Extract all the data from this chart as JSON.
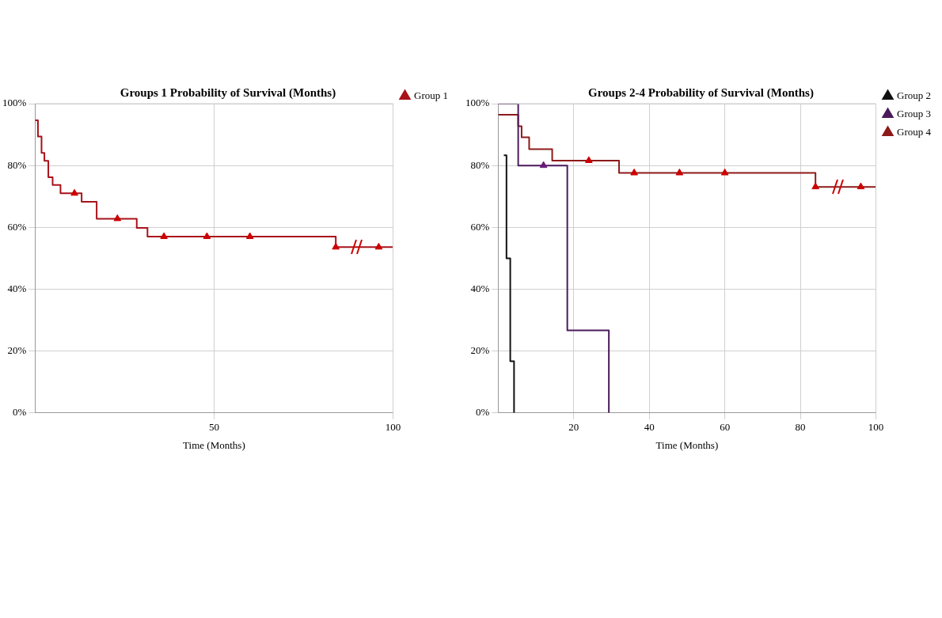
{
  "chart_data": [
    {
      "type": "step",
      "title": "Groups 1 Probability of Survival (Months)",
      "xlabel": "Time (Months)",
      "xlim": [
        0,
        100
      ],
      "xticks": [
        50,
        100
      ],
      "ylim": [
        0,
        100
      ],
      "yticks": [
        {
          "value": 0,
          "label": "0%"
        },
        {
          "value": 20,
          "label": "20%"
        },
        {
          "value": 40,
          "label": "40%"
        },
        {
          "value": 60,
          "label": "60%"
        },
        {
          "value": 80,
          "label": "80%"
        },
        {
          "value": 100,
          "label": "100%"
        }
      ],
      "grid": true,
      "legend": "top right",
      "line_style": "solid",
      "series": [
        {
          "name": "Group 1",
          "color": "#a8121a",
          "type": "step",
          "marker": "none",
          "x": [
            0,
            0.8,
            1.8,
            2.6,
            3.7,
            4.9,
            7.1,
            13,
            17.2,
            28.4,
            31.4,
            84,
            100
          ],
          "values": [
            94.6,
            89.4,
            84.1,
            81.5,
            76.2,
            73.7,
            71.0,
            68.3,
            62.8,
            59.8,
            57.0,
            53.6,
            53.6
          ]
        },
        {
          "color": "#cc0000",
          "type": "scatter",
          "marker": "triangle",
          "x": [
            11,
            23,
            36,
            48,
            60,
            84,
            96
          ],
          "values": [
            71.0,
            62.8,
            57.0,
            57.0,
            57.0,
            53.6,
            53.6
          ]
        }
      ]
    },
    {
      "type": "step",
      "title": "Groups 2-4 Probability of Survival (Months)",
      "xlabel": "Time (Months)",
      "xlim": [
        0,
        100
      ],
      "xticks": [
        20,
        40,
        60,
        80,
        100
      ],
      "ylim": [
        0,
        100
      ],
      "yticks": [
        {
          "value": 0,
          "label": "0%"
        },
        {
          "value": 20,
          "label": "20%"
        },
        {
          "value": 40,
          "label": "40%"
        },
        {
          "value": 60,
          "label": "60%"
        },
        {
          "value": 80,
          "label": "80%"
        },
        {
          "value": 100,
          "label": "100%"
        }
      ],
      "grid": true,
      "legend": "top right",
      "line_style": "solid",
      "series": [
        {
          "name": "Group 2",
          "color": "#111111",
          "type": "step",
          "marker": "none",
          "x": [
            1.5,
            2.2,
            3.2,
            4.2
          ],
          "values": [
            83.3,
            50,
            16.7,
            0
          ]
        },
        {
          "name": "Group 3",
          "color": "#4a1a5a",
          "type": "step",
          "marker": "none",
          "x": [
            0,
            5.3,
            18.3,
            29.3
          ],
          "values": [
            100,
            80,
            26.7,
            0
          ]
        },
        {
          "name": "Group 4",
          "color": "#8e1a1a",
          "type": "step",
          "marker": "none",
          "x": [
            0,
            5.3,
            6.2,
            8.2,
            14.3,
            32,
            84,
            100
          ],
          "values": [
            96.4,
            92.7,
            89.1,
            85.3,
            81.6,
            77.6,
            73.1,
            73.1
          ]
        },
        {
          "color": "#6a1a7a",
          "type": "scatter",
          "marker": "triangle",
          "x": [
            12
          ],
          "values": [
            80
          ]
        },
        {
          "color": "#cc0000",
          "type": "scatter",
          "marker": "triangle",
          "x": [
            24,
            36,
            48,
            60,
            84,
            96
          ],
          "values": [
            81.6,
            77.6,
            77.6,
            77.6,
            73.1,
            73.1
          ]
        }
      ]
    }
  ]
}
